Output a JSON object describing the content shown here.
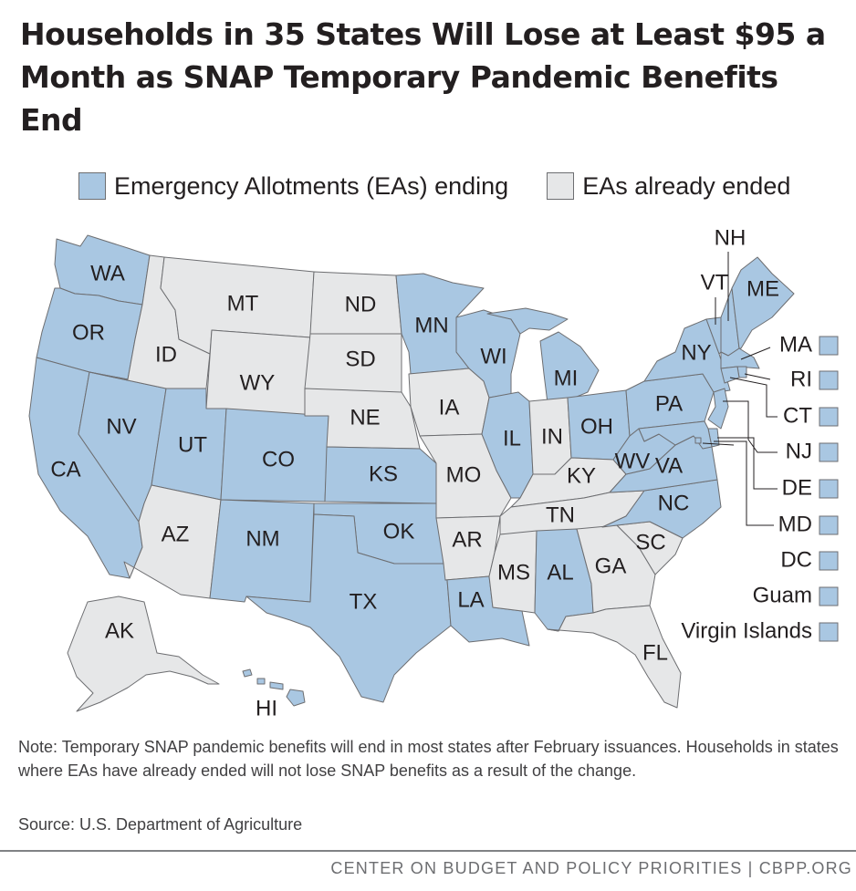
{
  "title": "Households in 35 States Will Lose at Least $95 a Month as SNAP Temporary Pandemic Benefits End",
  "legend": {
    "ending_label": "Emergency Allotments (EAs) ending",
    "ended_label": "EAs already ended"
  },
  "colors": {
    "ending": "#a9c7e2",
    "ended": "#e6e7e8",
    "border": "#6d6e71",
    "text": "#231f20"
  },
  "states": [
    {
      "abbr": "WA",
      "status": "ending"
    },
    {
      "abbr": "OR",
      "status": "ending"
    },
    {
      "abbr": "CA",
      "status": "ending"
    },
    {
      "abbr": "NV",
      "status": "ending"
    },
    {
      "abbr": "ID",
      "status": "ended"
    },
    {
      "abbr": "MT",
      "status": "ended"
    },
    {
      "abbr": "WY",
      "status": "ended"
    },
    {
      "abbr": "UT",
      "status": "ending"
    },
    {
      "abbr": "AZ",
      "status": "ended"
    },
    {
      "abbr": "CO",
      "status": "ending"
    },
    {
      "abbr": "NM",
      "status": "ending"
    },
    {
      "abbr": "ND",
      "status": "ended"
    },
    {
      "abbr": "SD",
      "status": "ended"
    },
    {
      "abbr": "NE",
      "status": "ended"
    },
    {
      "abbr": "KS",
      "status": "ending"
    },
    {
      "abbr": "OK",
      "status": "ending"
    },
    {
      "abbr": "TX",
      "status": "ending"
    },
    {
      "abbr": "MN",
      "status": "ending"
    },
    {
      "abbr": "IA",
      "status": "ended"
    },
    {
      "abbr": "MO",
      "status": "ended"
    },
    {
      "abbr": "AR",
      "status": "ended"
    },
    {
      "abbr": "LA",
      "status": "ending"
    },
    {
      "abbr": "WI",
      "status": "ending"
    },
    {
      "abbr": "IL",
      "status": "ending"
    },
    {
      "abbr": "MI",
      "status": "ending"
    },
    {
      "abbr": "IN",
      "status": "ended"
    },
    {
      "abbr": "OH",
      "status": "ending"
    },
    {
      "abbr": "KY",
      "status": "ended"
    },
    {
      "abbr": "TN",
      "status": "ended"
    },
    {
      "abbr": "MS",
      "status": "ended"
    },
    {
      "abbr": "AL",
      "status": "ending"
    },
    {
      "abbr": "GA",
      "status": "ended"
    },
    {
      "abbr": "FL",
      "status": "ended"
    },
    {
      "abbr": "SC",
      "status": "ended"
    },
    {
      "abbr": "NC",
      "status": "ending"
    },
    {
      "abbr": "VA",
      "status": "ending"
    },
    {
      "abbr": "WV",
      "status": "ending"
    },
    {
      "abbr": "PA",
      "status": "ending"
    },
    {
      "abbr": "NY",
      "status": "ending"
    },
    {
      "abbr": "VT",
      "status": "ending"
    },
    {
      "abbr": "NH",
      "status": "ending"
    },
    {
      "abbr": "ME",
      "status": "ending"
    },
    {
      "abbr": "MA",
      "status": "ending"
    },
    {
      "abbr": "RI",
      "status": "ending"
    },
    {
      "abbr": "CT",
      "status": "ending"
    },
    {
      "abbr": "NJ",
      "status": "ending"
    },
    {
      "abbr": "DE",
      "status": "ending"
    },
    {
      "abbr": "MD",
      "status": "ending"
    },
    {
      "abbr": "DC",
      "status": "ending"
    },
    {
      "abbr": "AK",
      "status": "ended"
    },
    {
      "abbr": "HI",
      "status": "ending"
    }
  ],
  "callouts": [
    {
      "label": "MA",
      "status": "ending"
    },
    {
      "label": "RI",
      "status": "ending"
    },
    {
      "label": "CT",
      "status": "ending"
    },
    {
      "label": "NJ",
      "status": "ending"
    },
    {
      "label": "DE",
      "status": "ending"
    },
    {
      "label": "MD",
      "status": "ending"
    },
    {
      "label": "DC",
      "status": "ending"
    },
    {
      "label": "Guam",
      "status": "ending"
    },
    {
      "label": "Virgin Islands",
      "status": "ending"
    }
  ],
  "note": "Note: Temporary SNAP pandemic benefits will end in most states after February issuances. Households in states where EAs have already ended will not lose SNAP benefits as a result of the change.",
  "source": "Source: U.S. Department of Agriculture",
  "footer": "CENTER ON BUDGET AND POLICY PRIORITIES | CBPP.ORG"
}
